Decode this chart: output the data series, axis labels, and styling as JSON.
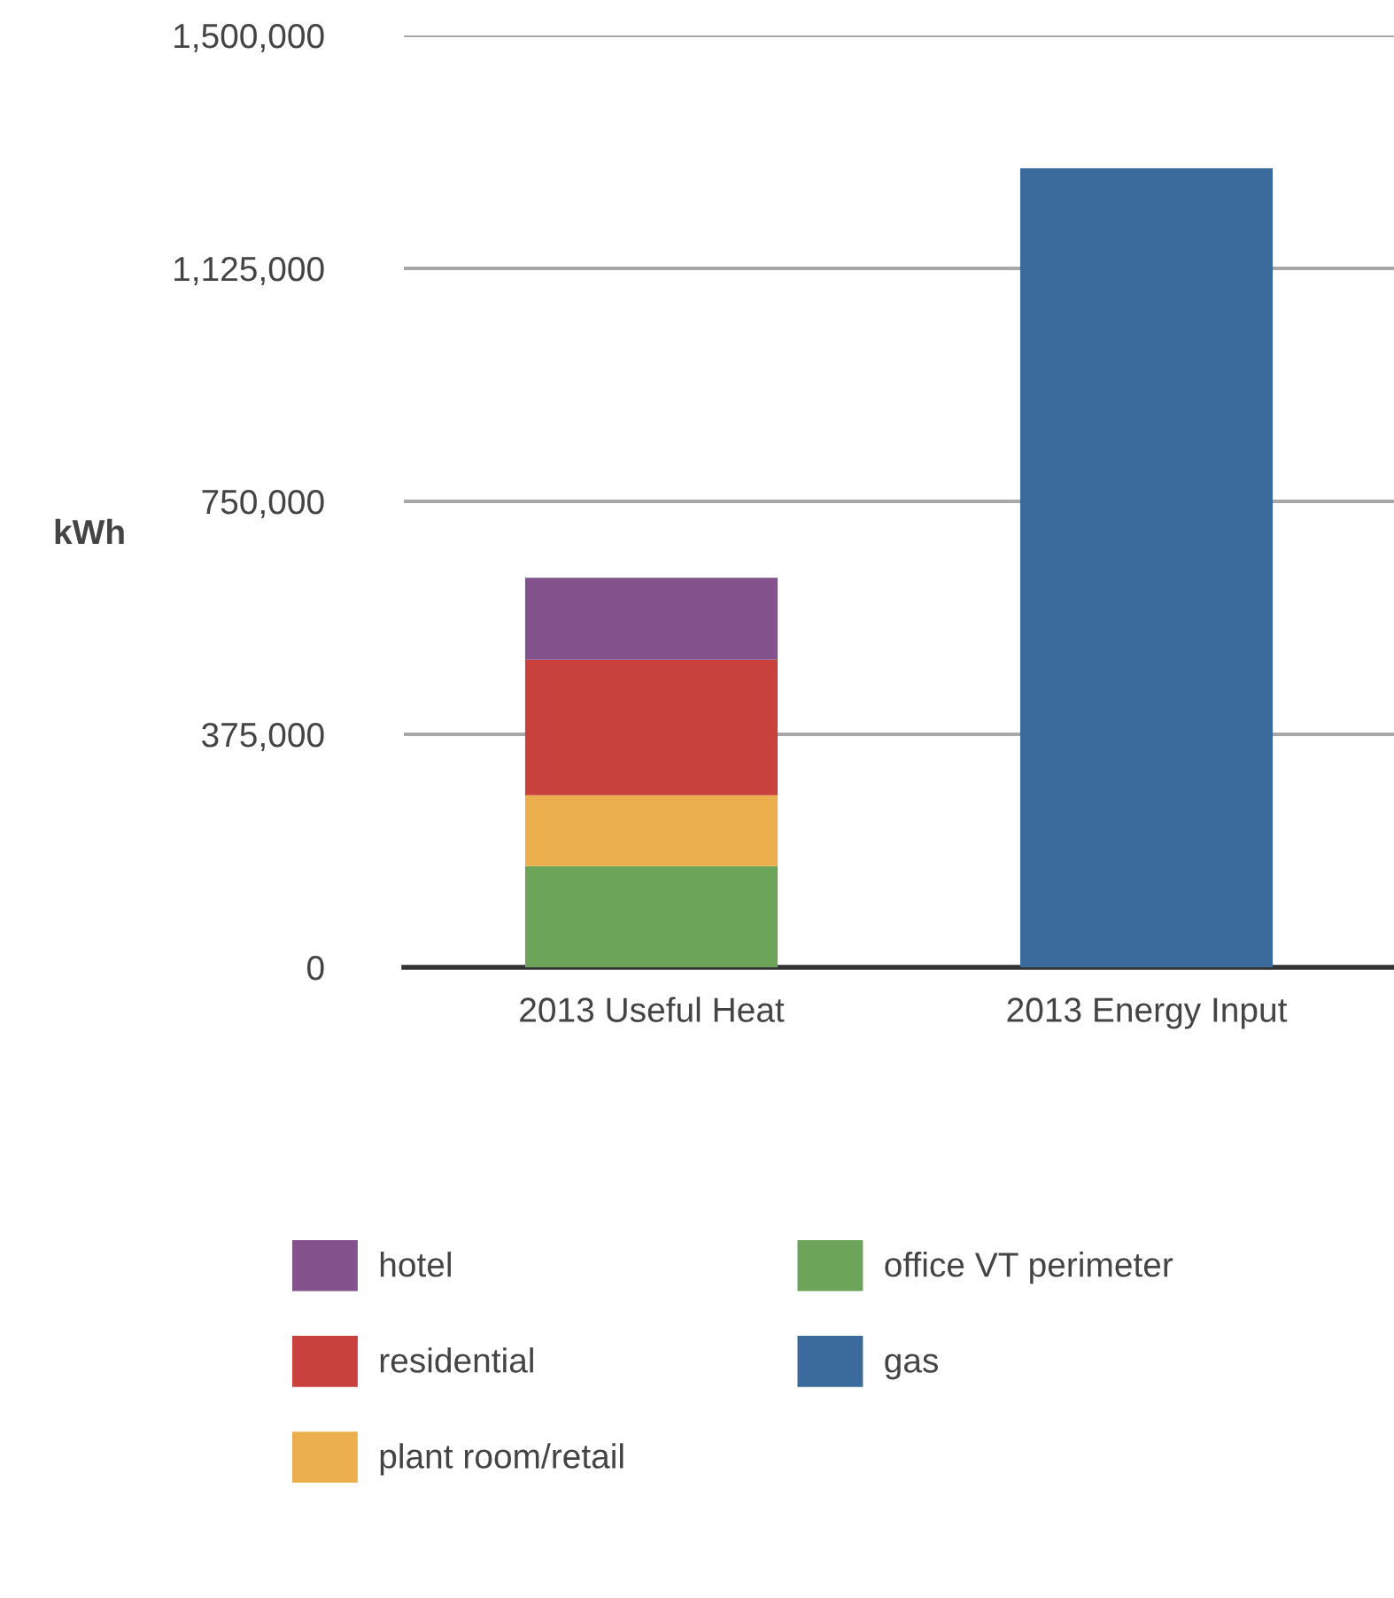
{
  "chart_data": {
    "type": "bar",
    "stacked": true,
    "ylabel": "kWh",
    "categories": [
      "2013 Useful Heat",
      "2013 Energy Input"
    ],
    "series": [
      {
        "name": "office VT perimeter",
        "color": "#6ca55a",
        "values": [
          163000,
          null
        ]
      },
      {
        "name": "plant room/retail",
        "color": "#ecaf4d",
        "values": [
          114000,
          null
        ]
      },
      {
        "name": "residential",
        "color": "#c8413d",
        "values": [
          218000,
          null
        ]
      },
      {
        "name": "hotel",
        "color": "#83518b",
        "values": [
          132000,
          null
        ]
      },
      {
        "name": "gas",
        "color": "#3b6b9c",
        "values": [
          null,
          1286000
        ]
      }
    ],
    "ylim": [
      0,
      1500000
    ],
    "yticks": [
      {
        "value": 0,
        "label": "0"
      },
      {
        "value": 375000,
        "label": "375,000"
      },
      {
        "value": 750000,
        "label": "750,000"
      },
      {
        "value": 1125000,
        "label": "1,125,000"
      },
      {
        "value": 1500000,
        "label": "1,500,000"
      }
    ],
    "grid": "y",
    "legend": "bottom"
  }
}
